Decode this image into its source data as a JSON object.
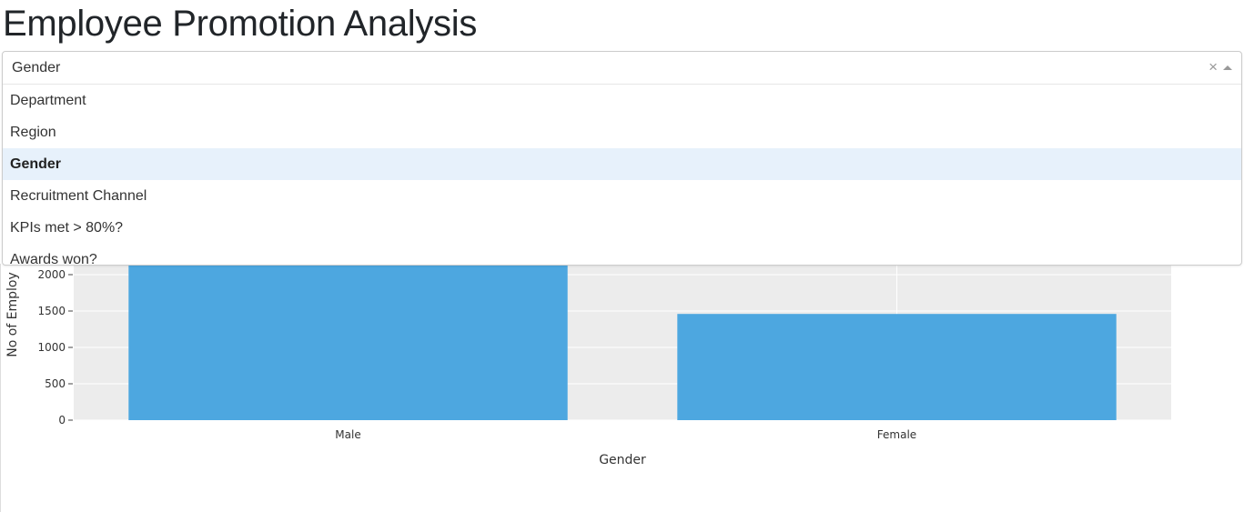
{
  "page": {
    "title": "Employee Promotion Analysis"
  },
  "dropdown": {
    "selected": "Gender",
    "clear_glyph": "×",
    "options": [
      {
        "label": "Department"
      },
      {
        "label": "Region"
      },
      {
        "label": "Gender",
        "selected": true
      },
      {
        "label": "Recruitment Channel"
      },
      {
        "label": "KPIs met > 80%?"
      },
      {
        "label": "Awards won?"
      }
    ]
  },
  "colors": {
    "bar": "#4da7e0",
    "plot_background": "#ececec",
    "option_highlight": "#e7f1fb"
  },
  "chart_data": {
    "type": "bar",
    "categories": [
      "Male",
      "Female"
    ],
    "values": [
      2900,
      1460
    ],
    "xlabel": "Gender",
    "ylabel": "No of Employ",
    "yticks": [
      "0",
      "500",
      "1000",
      "1500",
      "2000"
    ],
    "ylim": [
      0,
      3150
    ],
    "grid": true
  }
}
